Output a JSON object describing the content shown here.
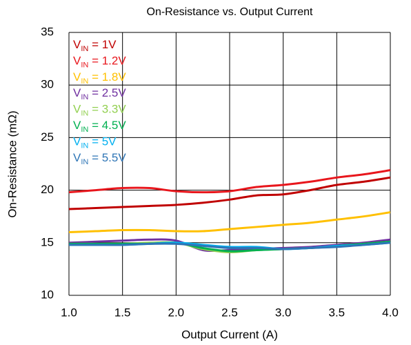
{
  "chart_data": {
    "type": "line",
    "title": "On-Resistance vs. Output Current",
    "x_label": "Output Current (A)",
    "y_label": "On-Resistance (mΩ)",
    "x": [
      1.0,
      1.25,
      1.5,
      1.75,
      2.0,
      2.25,
      2.5,
      2.75,
      3.0,
      3.25,
      3.5,
      3.75,
      4.0
    ],
    "series": [
      {
        "name": "VIN = 1V",
        "color": "#c00000",
        "values": [
          18.2,
          18.3,
          18.4,
          18.5,
          18.6,
          18.8,
          19.1,
          19.5,
          19.6,
          20.0,
          20.5,
          20.8,
          21.2
        ]
      },
      {
        "name": "VIN = 1.2V",
        "color": "#e8161c",
        "values": [
          19.8,
          20.0,
          20.2,
          20.2,
          19.9,
          19.8,
          19.9,
          20.3,
          20.5,
          20.8,
          21.2,
          21.5,
          21.9
        ]
      },
      {
        "name": "VIN = 1.8V",
        "color": "#ffc000",
        "values": [
          16.0,
          16.1,
          16.2,
          16.2,
          16.1,
          16.1,
          16.3,
          16.5,
          16.7,
          16.9,
          17.2,
          17.5,
          17.9
        ]
      },
      {
        "name": "VIN = 2.5V",
        "color": "#7030a0",
        "values": [
          15.0,
          15.1,
          15.2,
          15.3,
          15.2,
          14.3,
          14.3,
          14.4,
          14.5,
          14.6,
          14.8,
          15.0,
          15.3
        ]
      },
      {
        "name": "VIN = 3.3V",
        "color": "#92d050",
        "values": [
          14.9,
          14.9,
          14.9,
          15.0,
          15.0,
          14.4,
          14.1,
          14.3,
          14.4,
          14.5,
          14.7,
          14.9,
          15.1
        ]
      },
      {
        "name": "VIN = 4.5V",
        "color": "#00b050",
        "values": [
          14.9,
          14.9,
          14.9,
          14.9,
          15.0,
          14.5,
          14.2,
          14.3,
          14.4,
          14.5,
          14.7,
          14.9,
          15.1
        ]
      },
      {
        "name": "VIN = 5V",
        "color": "#00b0f0",
        "values": [
          14.8,
          14.8,
          14.8,
          14.9,
          15.0,
          14.8,
          14.6,
          14.6,
          14.4,
          14.5,
          14.7,
          14.8,
          15.0
        ]
      },
      {
        "name": "VIN = 5.5V",
        "color": "#2e75b6",
        "values": [
          14.8,
          14.8,
          14.8,
          14.9,
          14.9,
          14.7,
          14.5,
          14.5,
          14.4,
          14.5,
          14.6,
          14.8,
          15.0
        ]
      }
    ],
    "xlim": [
      1.0,
      4.0
    ],
    "xticks": [
      {
        "value": 1.0,
        "label": "1.0"
      },
      {
        "value": 1.5,
        "label": "1.5"
      },
      {
        "value": 2.0,
        "label": "2.0"
      },
      {
        "value": 2.5,
        "label": "2.5"
      },
      {
        "value": 3.0,
        "label": "3.0"
      },
      {
        "value": 3.5,
        "label": "3.5"
      },
      {
        "value": 4.0,
        "label": "4.0"
      }
    ],
    "ylim": [
      10,
      35
    ],
    "yticks": [
      10,
      15,
      20,
      25,
      30,
      35
    ],
    "grid": true,
    "legend": "upper left"
  }
}
